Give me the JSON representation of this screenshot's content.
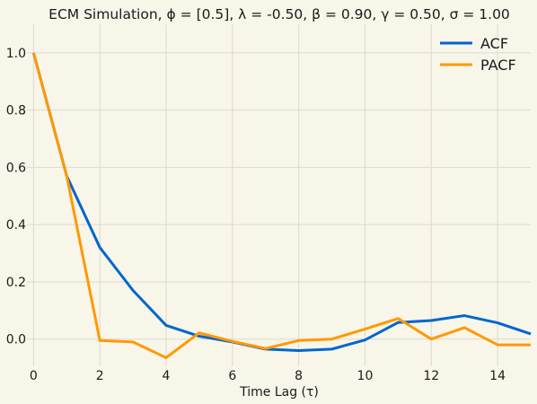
{
  "chart_data": {
    "type": "line",
    "title": "ECM Simulation, ϕ = [0.5], λ = -0.50, β = 0.90, γ = 0.50, σ = 1.00",
    "xlabel": "Time Lag (τ)",
    "ylabel": "",
    "xlim": [
      -0.2,
      15
    ],
    "ylim": [
      -0.095,
      1.1
    ],
    "xticks": [
      0,
      2,
      4,
      6,
      8,
      10,
      12,
      14
    ],
    "yticks": [
      0.0,
      0.2,
      0.4,
      0.6,
      0.8,
      1.0
    ],
    "x": [
      0,
      1,
      2,
      3,
      4,
      5,
      6,
      7,
      8,
      9,
      10,
      11,
      12,
      13,
      14,
      15
    ],
    "series": [
      {
        "name": "ACF",
        "color": "#0066cc",
        "values": [
          1.0,
          0.57,
          0.32,
          0.17,
          0.048,
          0.01,
          -0.01,
          -0.035,
          -0.04,
          -0.035,
          -0.003,
          0.058,
          0.065,
          0.082,
          0.057,
          0.018
        ]
      },
      {
        "name": "PACF",
        "color": "#ff9900",
        "values": [
          1.0,
          0.57,
          -0.005,
          -0.01,
          -0.065,
          0.022,
          -0.008,
          -0.033,
          -0.005,
          0.0,
          0.035,
          0.072,
          0.0,
          0.04,
          -0.02,
          -0.02
        ]
      }
    ],
    "grid": true,
    "legend_position": "top-right"
  }
}
